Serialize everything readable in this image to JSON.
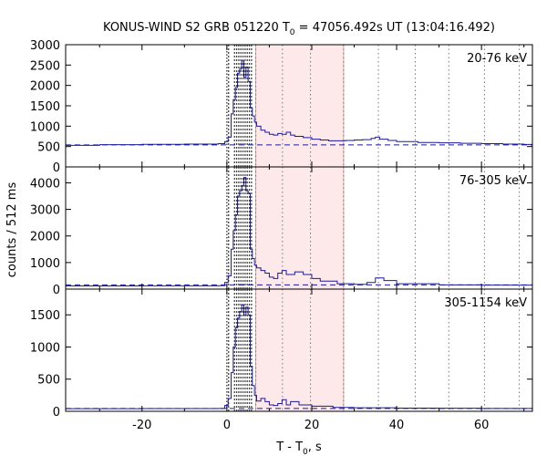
{
  "chart_data": {
    "type": "line",
    "title": {
      "prefix": "KONUS-WIND S2 GRB 051220 T",
      "sub": "0",
      "suffix": " = 47056.492s UT (13:04:16.492)"
    },
    "xlabel": {
      "main": "T - T",
      "sub": "0",
      "tail": ", s"
    },
    "ylabel": "counts / 512 ms",
    "xlim": [
      -38,
      72
    ],
    "x_ticks": [
      -20,
      0,
      20,
      40,
      60
    ],
    "shaded_interval": [
      6.8,
      27.5
    ],
    "marker_lines_dark": [
      0.4,
      1.8,
      2.3,
      2.8,
      3.3,
      3.8,
      4.3,
      4.8,
      5.3,
      5.8
    ],
    "marker_lines_dotted": [
      6.8,
      13.1,
      19.7,
      27.5,
      35.7,
      44.4,
      52.3,
      60.7,
      68.9
    ],
    "panels": [
      {
        "band": "20-76 keV",
        "ylim": [
          0,
          3000
        ],
        "y_ticks": [
          0,
          500,
          1000,
          1500,
          2000,
          2500,
          3000
        ],
        "background": 540,
        "x": [
          -38,
          -30,
          -20,
          -10,
          -2,
          -0.5,
          0.3,
          1.0,
          1.5,
          2.0,
          2.5,
          3.0,
          3.5,
          4.0,
          4.5,
          5.0,
          5.5,
          6.0,
          6.5,
          7,
          8,
          9,
          10,
          11,
          12,
          13,
          14,
          15,
          16,
          18,
          20,
          22,
          24,
          26,
          28,
          30,
          32,
          34,
          35,
          36,
          38,
          40,
          45,
          50,
          55,
          60,
          65,
          70,
          72
        ],
        "y": [
          530,
          545,
          555,
          560,
          570,
          620,
          730,
          1300,
          1650,
          1950,
          2300,
          2400,
          2600,
          2200,
          2450,
          2100,
          1450,
          1250,
          1100,
          1000,
          900,
          850,
          800,
          780,
          820,
          800,
          850,
          780,
          750,
          720,
          680,
          660,
          640,
          640,
          650,
          660,
          670,
          700,
          730,
          680,
          650,
          620,
          600,
          590,
          580,
          570,
          560,
          550,
          545
        ]
      },
      {
        "band": "76-305 keV",
        "ylim": [
          0,
          4600
        ],
        "y_ticks": [
          0,
          1000,
          2000,
          3000,
          4000
        ],
        "background": 160,
        "x": [
          -38,
          -20,
          -2,
          -0.5,
          0.3,
          1.0,
          1.5,
          2.0,
          2.5,
          3.0,
          3.5,
          4.0,
          4.5,
          5.0,
          5.5,
          6.0,
          6.5,
          7,
          8,
          9,
          10,
          11,
          12,
          13,
          14,
          16,
          18,
          20,
          22,
          26,
          30,
          33,
          35,
          37,
          40,
          50,
          60,
          72
        ],
        "y": [
          120,
          125,
          130,
          250,
          500,
          1500,
          2200,
          2800,
          3500,
          3700,
          3900,
          4200,
          3700,
          3600,
          1500,
          1150,
          900,
          800,
          700,
          600,
          450,
          400,
          600,
          700,
          550,
          650,
          550,
          400,
          300,
          200,
          180,
          250,
          420,
          320,
          200,
          160,
          150,
          140
        ]
      },
      {
        "band": "305-1154 keV",
        "ylim": [
          0,
          1900
        ],
        "y_ticks": [
          0,
          500,
          1000,
          1500
        ],
        "background": 45,
        "x": [
          -38,
          -20,
          -2,
          -0.5,
          0.3,
          1.0,
          1.5,
          2.0,
          2.5,
          3.0,
          3.5,
          4.0,
          4.5,
          5.0,
          5.5,
          6.0,
          6.5,
          7,
          8,
          9,
          10,
          11,
          12,
          13,
          14,
          15,
          17,
          20,
          25,
          30,
          40,
          50,
          60,
          72
        ],
        "y": [
          40,
          42,
          45,
          90,
          200,
          600,
          1000,
          1300,
          1450,
          1550,
          1650,
          1500,
          1620,
          1500,
          700,
          400,
          250,
          160,
          200,
          150,
          100,
          90,
          120,
          180,
          100,
          150,
          100,
          80,
          60,
          55,
          50,
          48,
          45,
          45
        ]
      }
    ]
  }
}
